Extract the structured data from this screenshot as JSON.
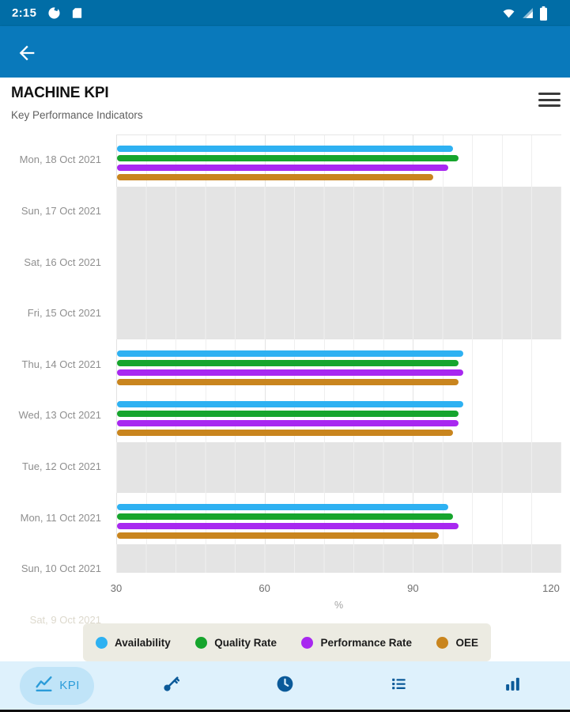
{
  "status_bar": {
    "time": "2:15"
  },
  "header": {
    "title": "MACHINE KPI",
    "subtitle": "Key Performance Indicators"
  },
  "chart_data": {
    "type": "bar",
    "orientation": "horizontal",
    "xlabel": "%",
    "xlim": [
      30,
      120
    ],
    "ticks": [
      30,
      60,
      90,
      120
    ],
    "grid": true,
    "legend_position": "bottom",
    "empty_row_band_color": "#e4e4e4",
    "categories": [
      "Mon, 18 Oct 2021",
      "Sun, 17 Oct 2021",
      "Sat, 16 Oct 2021",
      "Fri, 15 Oct 2021",
      "Thu, 14 Oct 2021",
      "Wed, 13 Oct 2021",
      "Tue, 12 Oct 2021",
      "Mon, 11 Oct 2021",
      "Sun, 10 Oct 2021",
      "Sat, 9 Oct 2021"
    ],
    "series": [
      {
        "name": "Availability",
        "color": "#2eb1f2",
        "values": [
          98,
          null,
          null,
          null,
          100,
          100,
          null,
          97,
          null,
          null
        ]
      },
      {
        "name": "Quality Rate",
        "color": "#16a52d",
        "values": [
          99,
          null,
          null,
          null,
          99,
          99,
          null,
          98,
          null,
          null
        ]
      },
      {
        "name": "Performance Rate",
        "color": "#a828f0",
        "values": [
          97,
          null,
          null,
          null,
          100,
          99,
          null,
          99,
          null,
          null
        ]
      },
      {
        "name": "OEE",
        "color": "#c9851e",
        "values": [
          94,
          null,
          null,
          null,
          99,
          98,
          null,
          95,
          null,
          null
        ]
      }
    ]
  },
  "bottom_nav": {
    "items": [
      {
        "label": "KPI",
        "icon": "kpi-line-chart-icon",
        "selected": true
      },
      {
        "label": "",
        "icon": "key-icon",
        "selected": false
      },
      {
        "label": "",
        "icon": "clock-icon",
        "selected": false
      },
      {
        "label": "",
        "icon": "list-icon",
        "selected": false
      },
      {
        "label": "",
        "icon": "bar-chart-icon",
        "selected": false
      }
    ]
  }
}
